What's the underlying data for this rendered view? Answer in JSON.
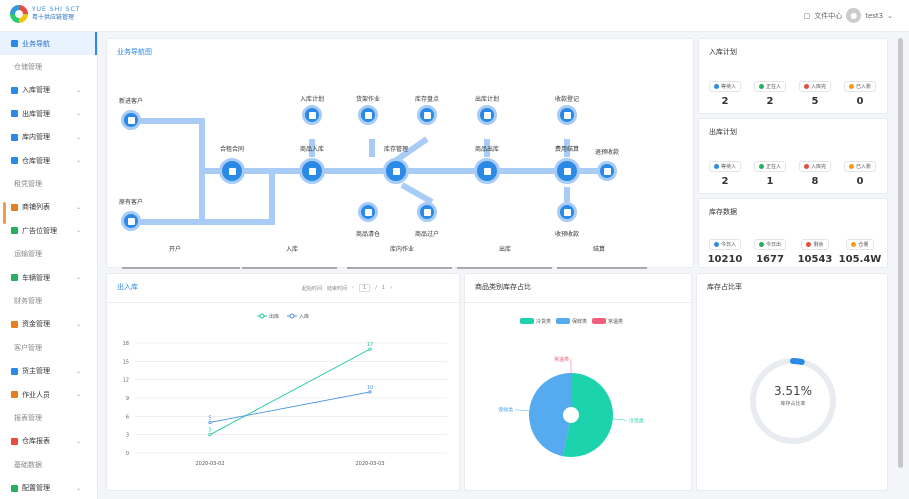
{
  "header": {
    "logo_line1": "YUE SHI SCT",
    "logo_line2": "粤十供应链管理",
    "file_center": "文件中心",
    "user": "test3"
  },
  "sidebar": {
    "items": [
      {
        "label": "业务导航",
        "active": true,
        "icon": "#2b8ae6",
        "sub": false,
        "chev": false
      },
      {
        "label": "仓储管理",
        "sub": true
      },
      {
        "label": "入库管理",
        "icon": "#2b8ae6",
        "chev": true
      },
      {
        "label": "出库管理",
        "icon": "#2b8ae6",
        "chev": true
      },
      {
        "label": "库内管理",
        "icon": "#2b8ae6",
        "chev": true
      },
      {
        "label": "仓库管理",
        "icon": "#2b8ae6",
        "chev": true
      },
      {
        "label": "租凭管理",
        "sub": true
      },
      {
        "label": "商铺列表",
        "icon": "#e67e22",
        "chev": true
      },
      {
        "label": "广告位管理",
        "icon": "#27ae60",
        "chev": true
      },
      {
        "label": "运输管理",
        "sub": true
      },
      {
        "label": "车辆管理",
        "icon": "#27ae60",
        "chev": true
      },
      {
        "label": "财务管理",
        "sub": true
      },
      {
        "label": "资金管理",
        "icon": "#e67e22",
        "chev": true
      },
      {
        "label": "客户管理",
        "sub": true
      },
      {
        "label": "货主管理",
        "icon": "#2b8ae6",
        "chev": true
      },
      {
        "label": "作业人员",
        "icon": "#e67e22",
        "chev": true
      },
      {
        "label": "报表管理",
        "sub": true
      },
      {
        "label": "仓库报表",
        "icon": "#e74c3c",
        "chev": true
      },
      {
        "label": "基础数据",
        "sub": true
      },
      {
        "label": "配置管理",
        "icon": "#27ae60",
        "chev": true
      }
    ]
  },
  "nav": {
    "title": "业务导航图",
    "nodes": {
      "new_customer": "新进客户",
      "old_customer": "原有客户",
      "contract": "合租合同",
      "goods_in": "商品入库",
      "stock": "库存管理",
      "goods_out": "商品出库",
      "fee": "费用结算",
      "in_plan": "入库计划",
      "pick": "货架作业",
      "stocktake": "库存盘点",
      "out_plan": "出库计划",
      "receipt": "收款登记",
      "prepay": "退预收款",
      "goods_clear": "商品清仓",
      "goods_transfer": "商品过户",
      "collect": "收预收款"
    },
    "stages": [
      "开户",
      "入库",
      "库内作业",
      "出库",
      "结算"
    ]
  },
  "in_plan": {
    "title": "入库计划",
    "stats": [
      {
        "label": "等待入",
        "value": "2",
        "color": "#2b8ae6"
      },
      {
        "label": "正在入",
        "value": "2",
        "color": "#27ae60"
      },
      {
        "label": "入库完",
        "value": "5",
        "color": "#e74c3c"
      },
      {
        "label": "已入账",
        "value": "0",
        "color": "#f39c12"
      }
    ]
  },
  "out_plan": {
    "title": "出库计划",
    "stats": [
      {
        "label": "等待入",
        "value": "2",
        "color": "#2b8ae6"
      },
      {
        "label": "正在入",
        "value": "1",
        "color": "#27ae60"
      },
      {
        "label": "入库完",
        "value": "8",
        "color": "#e74c3c"
      },
      {
        "label": "已入账",
        "value": "0",
        "color": "#f39c12"
      }
    ]
  },
  "stock_data": {
    "title": "库存数据",
    "stats": [
      {
        "label": "今日入",
        "value": "10210",
        "color": "#2b8ae6"
      },
      {
        "label": "今日出",
        "value": "1677",
        "color": "#27ae60"
      },
      {
        "label": "剩余",
        "value": "10543",
        "color": "#e74c3c"
      },
      {
        "label": "仓量",
        "value": "105.4W",
        "color": "#f39c12"
      }
    ]
  },
  "inout": {
    "title": "出入库",
    "start_time": "起始时间",
    "end_time": "结束时间",
    "page": "1",
    "pages": "1"
  },
  "category": {
    "title": "商品类别库存占比"
  },
  "ratio": {
    "title": "库存占比率",
    "value": "3.51%",
    "label": "库存占比率",
    "fraction": 0.0351
  },
  "chart_data": [
    {
      "type": "line",
      "title": "",
      "categories": [
        "2020-03-02",
        "2020-03-03"
      ],
      "yticks": [
        0,
        3,
        6,
        9,
        12,
        15,
        18
      ],
      "ylim": [
        0,
        18
      ],
      "series": [
        {
          "name": "出库",
          "color": "#1dc7a2",
          "values": [
            3,
            17
          ]
        },
        {
          "name": "入库",
          "color": "#4a90e2",
          "values": [
            5,
            10
          ]
        }
      ]
    },
    {
      "type": "pie",
      "title": "",
      "series": [
        {
          "name": "冷货类",
          "value": 53,
          "color": "#1dd3ad"
        },
        {
          "name": "保鲜类",
          "value": 47,
          "color": "#55aaf0"
        },
        {
          "name": "常温类",
          "value": 0,
          "color": "#f0607a"
        }
      ]
    }
  ]
}
